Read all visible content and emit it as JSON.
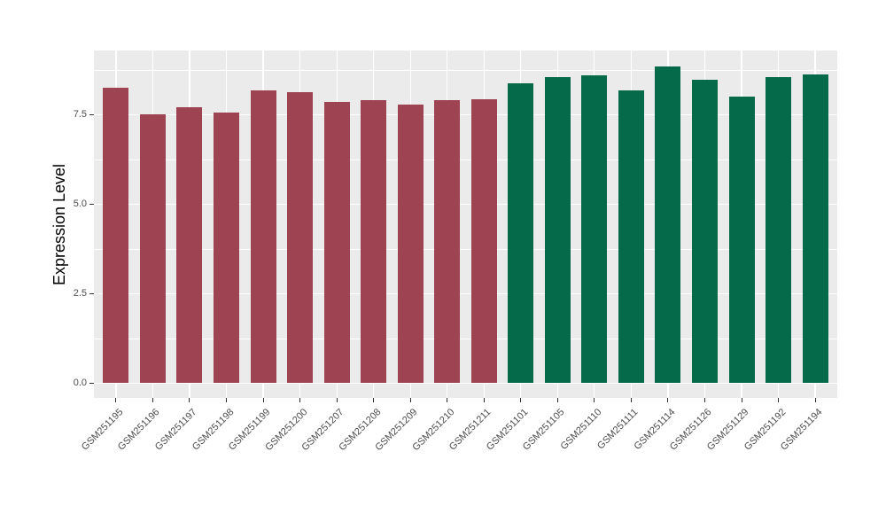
{
  "style": {
    "background": "#ffffff",
    "panel_background": "#ebebeb",
    "gridline_color": "#ffffff",
    "axis_text_color": "#4d4d4d",
    "axis_title_color": "#000000",
    "tick_mark_color": "#333333",
    "group_colors": {
      "group1": "#9d4351",
      "group2": "#056a4a"
    }
  },
  "chart_data": {
    "type": "bar",
    "title": "",
    "xlabel": "",
    "ylabel": "Expression Level",
    "ylim": [
      0,
      9.29
    ],
    "grid": "major+minor",
    "legend_position": "none",
    "yticks": [
      0,
      2.5,
      5,
      7.5
    ],
    "ytick_labels": [
      "0.0",
      "2.5",
      "5.0",
      "7.5"
    ],
    "yticks_minor": [
      1.25,
      3.75,
      6.25,
      8.75
    ],
    "categories": [
      "GSM251195",
      "GSM251196",
      "GSM251197",
      "GSM251198",
      "GSM251199",
      "GSM251200",
      "GSM251207",
      "GSM251208",
      "GSM251209",
      "GSM251210",
      "GSM251211",
      "GSM251101",
      "GSM251105",
      "GSM251110",
      "GSM251111",
      "GSM251114",
      "GSM251126",
      "GSM251129",
      "GSM251192",
      "GSM251194"
    ],
    "values": [
      8.25,
      7.52,
      7.7,
      7.57,
      8.18,
      8.12,
      7.85,
      7.92,
      7.78,
      7.91,
      7.94,
      8.38,
      8.55,
      8.6,
      8.18,
      8.85,
      8.47,
      8.01,
      8.56,
      8.63
    ],
    "groups": [
      "group1",
      "group1",
      "group1",
      "group1",
      "group1",
      "group1",
      "group1",
      "group1",
      "group1",
      "group1",
      "group1",
      "group2",
      "group2",
      "group2",
      "group2",
      "group2",
      "group2",
      "group2",
      "group2",
      "group2"
    ]
  }
}
